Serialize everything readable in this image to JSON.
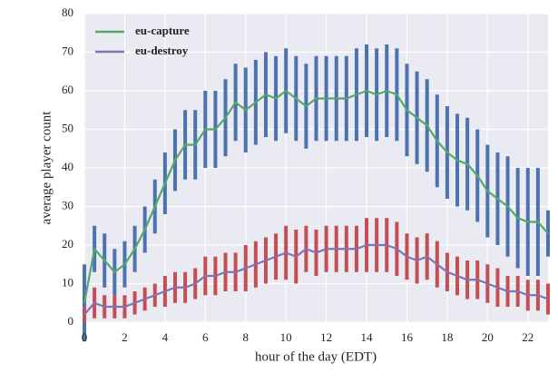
{
  "chart_data": {
    "type": "line",
    "xlabel": "hour of the day (EDT)",
    "ylabel": "average player count",
    "x": [
      0,
      0.5,
      1,
      1.5,
      2,
      2.5,
      3,
      3.5,
      4,
      4.5,
      5,
      5.5,
      6,
      6.5,
      7,
      7.5,
      8,
      8.5,
      9,
      9.5,
      10,
      10.5,
      11,
      11.5,
      12,
      12.5,
      13,
      13.5,
      14,
      14.5,
      15,
      15.5,
      16,
      16.5,
      17,
      17.5,
      18,
      18.5,
      19,
      19.5,
      20,
      20.5,
      21,
      21.5,
      22,
      22.5,
      23
    ],
    "series": [
      {
        "name": "eu-capture",
        "color": "#55a868",
        "error_color": "#4c72b0",
        "values": [
          5,
          19,
          16,
          13,
          15,
          19,
          24,
          30,
          36,
          42,
          46,
          46,
          50,
          50,
          53,
          57,
          55,
          57,
          59,
          58,
          60,
          58,
          56,
          58,
          58,
          58,
          58,
          59,
          60,
          59,
          60,
          59,
          55,
          53,
          51,
          47,
          44,
          42,
          41,
          38,
          34,
          32,
          30,
          27,
          26,
          26,
          23
        ],
        "errors": [
          10,
          6,
          7,
          6,
          6,
          6,
          6,
          7,
          8,
          8,
          9,
          9,
          10,
          10,
          10,
          10,
          11,
          11,
          11,
          11,
          11,
          11,
          11,
          11,
          11,
          11,
          11,
          12,
          12,
          12,
          12,
          12,
          12,
          12,
          12,
          12,
          12,
          12,
          12,
          12,
          12,
          12,
          13,
          13,
          14,
          14,
          6
        ]
      },
      {
        "name": "eu-destroy",
        "color": "#8172b2",
        "error_color": "#c44e52",
        "values": [
          2,
          5,
          4,
          4,
          4,
          5,
          6,
          7,
          8,
          9,
          9,
          10,
          12,
          12,
          13,
          13,
          14,
          15,
          16,
          17,
          18,
          17,
          19,
          18,
          19,
          19,
          19,
          19,
          20,
          20,
          20,
          19,
          17,
          16,
          17,
          15,
          13,
          12,
          11,
          11,
          10,
          9,
          8,
          8,
          7,
          7,
          6
        ],
        "errors": [
          2,
          4,
          3,
          3,
          3,
          3,
          3,
          3,
          4,
          4,
          4,
          4,
          5,
          5,
          5,
          5,
          6,
          6,
          6,
          6,
          7,
          7,
          6,
          6,
          6,
          6,
          6,
          6,
          7,
          7,
          7,
          7,
          6,
          6,
          6,
          6,
          5,
          5,
          5,
          5,
          5,
          5,
          4,
          4,
          4,
          4,
          4
        ]
      }
    ],
    "xlim": [
      0,
      23
    ],
    "xticks": [
      0,
      2,
      4,
      6,
      8,
      10,
      12,
      14,
      16,
      18,
      20,
      22
    ],
    "ylim": [
      0,
      80
    ],
    "yticks": [
      0,
      10,
      20,
      30,
      40,
      50,
      60,
      70,
      80
    ],
    "grid": true,
    "legend": "upper left"
  }
}
